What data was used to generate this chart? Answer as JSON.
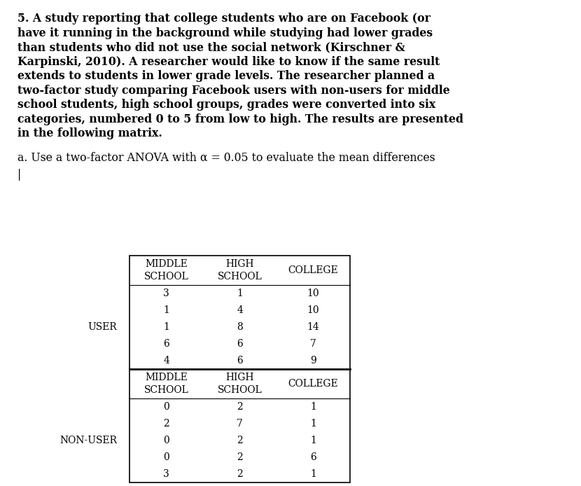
{
  "title_lines": [
    "5. A study reporting that college students who are on Facebook (or",
    "have it running in the background while studying had lower grades",
    "than students who did not use the social network (Kirschner &",
    "Karpinski, 2010). A researcher would like to know if the same result",
    "extends to students in lower grade levels. The researcher planned a",
    "two-factor study comparing Facebook users with non-users for middle",
    "school students, high school groups, grades were converted into six",
    "categories, numbered 0 to 5 from low to high. The results are presented",
    "in the following matrix."
  ],
  "subtitle_text": "a. Use a two-factor ANOVA with α = 0.05 to evaluate the mean differences",
  "user_label": "USER",
  "non_user_label": "NON-USER",
  "col_header1": [
    "MIDDLE",
    "SCHOOL"
  ],
  "col_header2": [
    "HIGH",
    "SCHOOL"
  ],
  "col_header3": [
    "COLLEGE"
  ],
  "user_data": [
    [
      3,
      1,
      10
    ],
    [
      1,
      4,
      10
    ],
    [
      1,
      8,
      14
    ],
    [
      6,
      6,
      7
    ],
    [
      4,
      6,
      9
    ]
  ],
  "non_user_data": [
    [
      0,
      2,
      1
    ],
    [
      2,
      7,
      1
    ],
    [
      0,
      2,
      1
    ],
    [
      0,
      2,
      6
    ],
    [
      3,
      2,
      1
    ]
  ],
  "bg_color": "#ffffff",
  "text_color": "#000000",
  "title_fontsize": 11.3,
  "subtitle_fontsize": 11.3,
  "table_fontsize": 10.0,
  "label_fontsize": 10.0
}
